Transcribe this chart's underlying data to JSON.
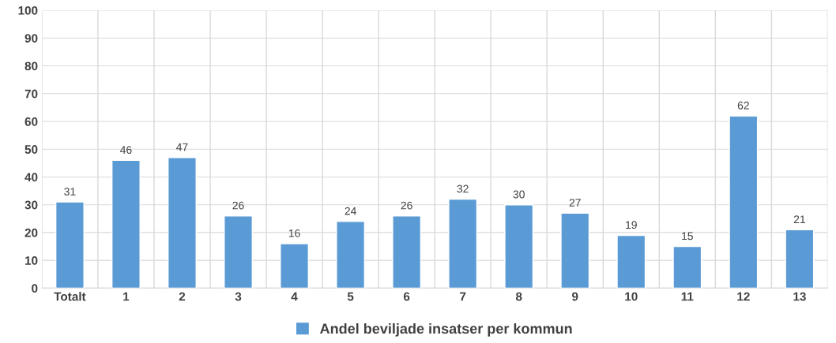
{
  "chart_data": {
    "type": "bar",
    "categories": [
      "Totalt",
      "1",
      "2",
      "3",
      "4",
      "5",
      "6",
      "7",
      "8",
      "9",
      "10",
      "11",
      "12",
      "13"
    ],
    "series": [
      {
        "name": "Andel beviljade insatser per kommun",
        "color": "#5b9bd5",
        "values": [
          31,
          46,
          47,
          26,
          16,
          24,
          26,
          32,
          30,
          27,
          19,
          15,
          62,
          21
        ]
      }
    ],
    "data_labels": true,
    "ylim": [
      0,
      100
    ],
    "yticks": [
      0,
      10,
      20,
      30,
      40,
      50,
      60,
      70,
      80,
      90,
      100
    ],
    "grid": true,
    "legend": "bottom"
  }
}
